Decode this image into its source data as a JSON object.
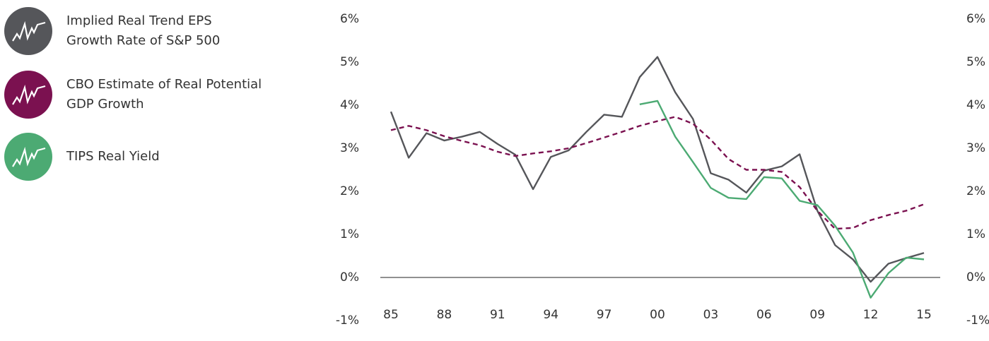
{
  "chart_data": {
    "type": "line",
    "categories": [
      "85",
      null,
      null,
      "88",
      null,
      null,
      "91",
      null,
      null,
      "94",
      null,
      null,
      "97",
      null,
      null,
      "00",
      null,
      null,
      "03",
      null,
      null,
      "06",
      null,
      null,
      "09",
      null,
      null,
      "12",
      null,
      null,
      "15"
    ],
    "series": [
      {
        "name": "Implied Real Trend EPS Growth Rate of S&P 500",
        "color": "#55565a",
        "dash": false,
        "values": [
          3.85,
          2.78,
          3.35,
          3.18,
          3.27,
          3.38,
          3.1,
          2.85,
          2.05,
          2.8,
          2.95,
          3.38,
          3.78,
          3.73,
          4.65,
          5.12,
          4.3,
          3.68,
          2.42,
          2.27,
          1.97,
          2.48,
          2.58,
          2.86,
          1.55,
          0.75,
          0.42,
          -0.1,
          0.32,
          0.45,
          0.57
        ]
      },
      {
        "name": "CBO Estimate of Real Potential GDP Growth",
        "color": "#7b1150",
        "dash": true,
        "values": [
          3.42,
          3.52,
          3.42,
          3.28,
          3.17,
          3.07,
          2.92,
          2.82,
          2.88,
          2.93,
          3.0,
          3.12,
          3.25,
          3.38,
          3.52,
          3.63,
          3.73,
          3.57,
          3.2,
          2.75,
          2.5,
          2.5,
          2.45,
          2.1,
          1.55,
          1.13,
          1.15,
          1.33,
          1.45,
          1.55,
          1.7
        ]
      },
      {
        "name": "TIPS Real Yield",
        "color": "#4caa73",
        "dash": false,
        "values": [
          null,
          null,
          null,
          null,
          null,
          null,
          null,
          null,
          null,
          null,
          null,
          null,
          null,
          null,
          4.02,
          4.1,
          3.27,
          2.68,
          2.08,
          1.85,
          1.82,
          2.33,
          2.3,
          1.78,
          1.68,
          1.2,
          0.58,
          -0.47,
          0.1,
          0.46,
          0.42
        ]
      }
    ],
    "ylim": [
      -1,
      6
    ],
    "yticks": [
      {
        "value": -1,
        "label": "-1%"
      },
      {
        "value": 0,
        "label": "0%"
      },
      {
        "value": 1,
        "label": "1%"
      },
      {
        "value": 2,
        "label": "2%"
      },
      {
        "value": 3,
        "label": "3%"
      },
      {
        "value": 4,
        "label": "4%"
      },
      {
        "value": 5,
        "label": "5%"
      },
      {
        "value": 6,
        "label": "6%"
      }
    ],
    "grid": false
  }
}
